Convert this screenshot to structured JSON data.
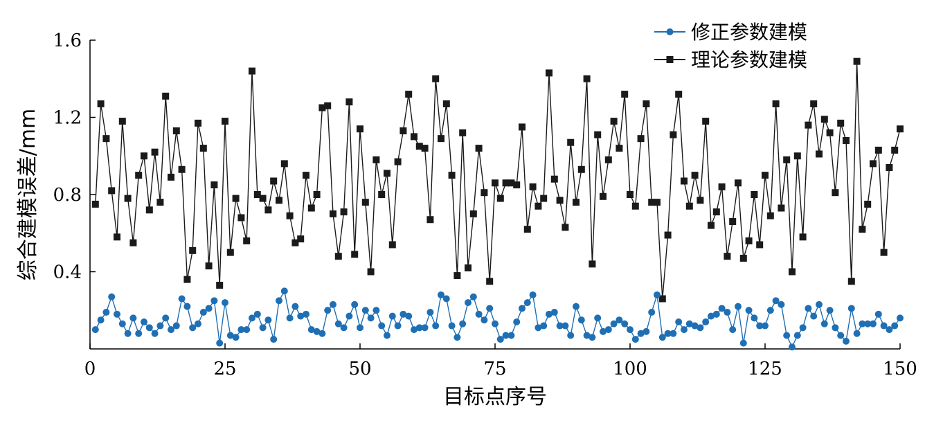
{
  "chart_data": {
    "type": "line",
    "xlabel": "目标点序号",
    "ylabel": "综合建模误差/mm",
    "xlim": [
      0,
      150
    ],
    "ylim": [
      0,
      1.6
    ],
    "x_ticks": [
      "0",
      "25",
      "50",
      "75",
      "100",
      "125",
      "150"
    ],
    "y_ticks": [
      "0.4",
      "0.8",
      "1.2",
      "1.6"
    ],
    "legend_position": "top-right",
    "grid": false,
    "series": [
      {
        "name": "修正参数建模",
        "color": "#1f6fb4",
        "marker": "circle",
        "x": [
          1,
          2,
          3,
          4,
          5,
          6,
          7,
          8,
          9,
          10,
          11,
          12,
          13,
          14,
          15,
          16,
          17,
          18,
          19,
          20,
          21,
          22,
          23,
          24,
          25,
          26,
          27,
          28,
          29,
          30,
          31,
          32,
          33,
          34,
          35,
          36,
          37,
          38,
          39,
          40,
          41,
          42,
          43,
          44,
          45,
          46,
          47,
          48,
          49,
          50,
          51,
          52,
          53,
          54,
          55,
          56,
          57,
          58,
          59,
          60,
          61,
          62,
          63,
          64,
          65,
          66,
          67,
          68,
          69,
          70,
          71,
          72,
          73,
          74,
          75,
          76,
          77,
          78,
          79,
          80,
          81,
          82,
          83,
          84,
          85,
          86,
          87,
          88,
          89,
          90,
          91,
          92,
          93,
          94,
          95,
          96,
          97,
          98,
          99,
          100,
          101,
          102,
          103,
          104,
          105,
          106,
          107,
          108,
          109,
          110,
          111,
          112,
          113,
          114,
          115,
          116,
          117,
          118,
          119,
          120,
          121,
          122,
          123,
          124,
          125,
          126,
          127,
          128,
          129,
          130,
          131,
          132,
          133,
          134,
          135,
          136,
          137,
          138,
          139,
          140,
          141,
          142,
          143,
          144,
          145,
          146,
          147,
          148,
          149,
          150
        ],
        "y": [
          0.1,
          0.15,
          0.19,
          0.27,
          0.18,
          0.13,
          0.08,
          0.16,
          0.08,
          0.14,
          0.11,
          0.08,
          0.12,
          0.16,
          0.1,
          0.12,
          0.26,
          0.22,
          0.11,
          0.13,
          0.19,
          0.21,
          0.25,
          0.03,
          0.24,
          0.07,
          0.06,
          0.1,
          0.1,
          0.16,
          0.18,
          0.11,
          0.15,
          0.05,
          0.25,
          0.3,
          0.16,
          0.22,
          0.17,
          0.18,
          0.1,
          0.09,
          0.08,
          0.2,
          0.23,
          0.13,
          0.11,
          0.17,
          0.23,
          0.11,
          0.2,
          0.16,
          0.2,
          0.12,
          0.07,
          0.17,
          0.12,
          0.18,
          0.17,
          0.1,
          0.11,
          0.11,
          0.19,
          0.12,
          0.28,
          0.26,
          0.12,
          0.06,
          0.13,
          0.24,
          0.27,
          0.18,
          0.15,
          0.21,
          0.13,
          0.05,
          0.07,
          0.07,
          0.14,
          0.21,
          0.24,
          0.28,
          0.11,
          0.12,
          0.18,
          0.19,
          0.12,
          0.12,
          0.07,
          0.22,
          0.15,
          0.07,
          0.06,
          0.16,
          0.09,
          0.1,
          0.13,
          0.15,
          0.13,
          0.1,
          0.05,
          0.08,
          0.09,
          0.19,
          0.28,
          0.06,
          0.08,
          0.08,
          0.14,
          0.1,
          0.13,
          0.12,
          0.11,
          0.14,
          0.17,
          0.18,
          0.21,
          0.19,
          0.1,
          0.22,
          0.03,
          0.2,
          0.16,
          0.12,
          0.12,
          0.2,
          0.25,
          0.23,
          0.07,
          0.01,
          0.07,
          0.11,
          0.21,
          0.17,
          0.23,
          0.13,
          0.2,
          0.11,
          0.07,
          0.04,
          0.21,
          0.08,
          0.13,
          0.13,
          0.13,
          0.18,
          0.12,
          0.1,
          0.12,
          0.16
        ]
      },
      {
        "name": "理论参数建模",
        "color": "#1a1a1a",
        "marker": "square",
        "x": [
          1,
          2,
          3,
          4,
          5,
          6,
          7,
          8,
          9,
          10,
          11,
          12,
          13,
          14,
          15,
          16,
          17,
          18,
          19,
          20,
          21,
          22,
          23,
          24,
          25,
          26,
          27,
          28,
          29,
          30,
          31,
          32,
          33,
          34,
          35,
          36,
          37,
          38,
          39,
          40,
          41,
          42,
          43,
          44,
          45,
          46,
          47,
          48,
          49,
          50,
          51,
          52,
          53,
          54,
          55,
          56,
          57,
          58,
          59,
          60,
          61,
          62,
          63,
          64,
          65,
          66,
          67,
          68,
          69,
          70,
          71,
          72,
          73,
          74,
          75,
          76,
          77,
          78,
          79,
          80,
          81,
          82,
          83,
          84,
          85,
          86,
          87,
          88,
          89,
          90,
          91,
          92,
          93,
          94,
          95,
          96,
          97,
          98,
          99,
          100,
          101,
          102,
          103,
          104,
          105,
          106,
          107,
          108,
          109,
          110,
          111,
          112,
          113,
          114,
          115,
          116,
          117,
          118,
          119,
          120,
          121,
          122,
          123,
          124,
          125,
          126,
          127,
          128,
          129,
          130,
          131,
          132,
          133,
          134,
          135,
          136,
          137,
          138,
          139,
          140,
          141,
          142,
          143,
          144,
          145,
          146,
          147,
          148,
          149,
          150
        ],
        "y": [
          0.75,
          1.27,
          1.09,
          0.82,
          0.58,
          1.18,
          0.78,
          0.55,
          0.9,
          1.0,
          0.72,
          1.02,
          0.76,
          1.31,
          0.89,
          1.13,
          0.93,
          0.36,
          0.51,
          1.17,
          1.04,
          0.43,
          0.85,
          0.33,
          1.18,
          0.5,
          0.78,
          0.68,
          0.56,
          1.44,
          0.8,
          0.78,
          0.72,
          0.87,
          0.77,
          0.96,
          0.69,
          0.55,
          0.57,
          0.9,
          0.73,
          0.8,
          1.25,
          1.26,
          0.7,
          0.48,
          0.71,
          1.28,
          0.49,
          1.14,
          0.76,
          0.4,
          0.98,
          0.8,
          0.91,
          0.54,
          0.97,
          1.13,
          1.32,
          1.1,
          1.05,
          1.04,
          0.67,
          1.4,
          1.09,
          1.27,
          0.9,
          0.38,
          1.12,
          0.42,
          0.7,
          1.04,
          0.81,
          0.35,
          0.86,
          0.78,
          0.86,
          0.86,
          0.85,
          1.15,
          0.62,
          0.84,
          0.74,
          0.78,
          1.43,
          0.88,
          0.77,
          0.63,
          1.07,
          0.76,
          0.93,
          1.4,
          0.44,
          1.11,
          0.79,
          0.98,
          1.18,
          1.04,
          1.32,
          0.8,
          0.74,
          1.09,
          1.27,
          0.76,
          0.76,
          0.26,
          0.59,
          1.11,
          1.32,
          0.87,
          0.74,
          0.9,
          0.77,
          1.18,
          0.64,
          0.71,
          0.84,
          0.48,
          0.66,
          0.86,
          0.47,
          0.56,
          0.8,
          0.54,
          0.9,
          0.69,
          1.27,
          0.73,
          0.98,
          0.4,
          1.0,
          0.58,
          1.16,
          1.27,
          1.01,
          1.19,
          1.12,
          0.81,
          1.17,
          1.08,
          0.35,
          1.49,
          0.62,
          0.75,
          0.96,
          1.03,
          0.5,
          0.94,
          1.03,
          1.14
        ]
      }
    ]
  }
}
